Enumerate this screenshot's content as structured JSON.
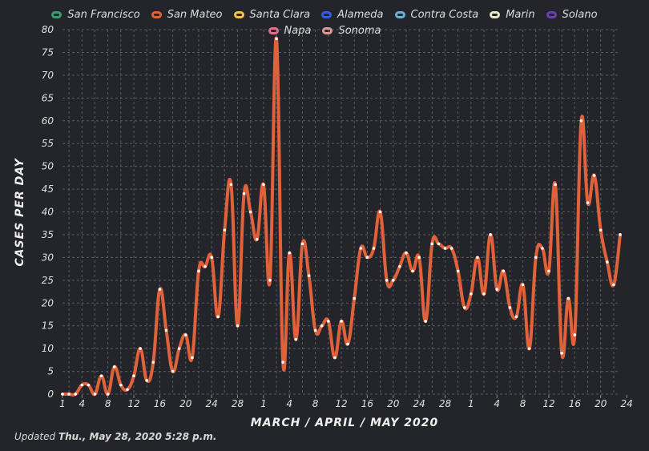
{
  "chart_data": {
    "type": "line",
    "title": "",
    "xlabel": "MARCH / APRIL / MAY 2020",
    "ylabel": "CASES PER DAY",
    "ylim": [
      0,
      80
    ],
    "yticks": [
      0,
      5,
      10,
      15,
      20,
      25,
      30,
      35,
      40,
      45,
      50,
      55,
      60,
      65,
      70,
      75,
      80
    ],
    "grid": true,
    "legend_position": "top",
    "x_tick_labels": [
      "1",
      "4",
      "8",
      "12",
      "16",
      "20",
      "24",
      "28",
      "1",
      "4",
      "8",
      "12",
      "16",
      "20",
      "24",
      "28",
      "1",
      "4",
      "8",
      "12",
      "16",
      "20",
      "24"
    ],
    "legend": [
      {
        "name": "San Francisco",
        "color": "#3f9b6f"
      },
      {
        "name": "San Mateo",
        "color": "#e0623a"
      },
      {
        "name": "Santa Clara",
        "color": "#f2c14e"
      },
      {
        "name": "Alameda",
        "color": "#2f5fe0"
      },
      {
        "name": "Contra Costa",
        "color": "#6aaed6"
      },
      {
        "name": "Marin",
        "color": "#e8e8c8"
      },
      {
        "name": "Solano",
        "color": "#6b3fb0"
      },
      {
        "name": "Napa",
        "color": "#e0708a"
      },
      {
        "name": "Sonoma",
        "color": "#d99a9a"
      }
    ],
    "series": [
      {
        "name": "San Mateo",
        "color": "#e0623a",
        "values": [
          0,
          0,
          0,
          2,
          2,
          0,
          4,
          0,
          6,
          2,
          1,
          4,
          10,
          3,
          7,
          23,
          14,
          5,
          10,
          13,
          8,
          27,
          28,
          30,
          17,
          36,
          46,
          15,
          44,
          40,
          34,
          46,
          25,
          78,
          7,
          31,
          12,
          33,
          26,
          14,
          15,
          16,
          8,
          16,
          11,
          21,
          32,
          30,
          32,
          40,
          25,
          25,
          28,
          31,
          27,
          30,
          16,
          33,
          33,
          32,
          32,
          27,
          19,
          22,
          30,
          22,
          35,
          23,
          27,
          19,
          17,
          24,
          10,
          30,
          32,
          27,
          46,
          9,
          21,
          13,
          60,
          42,
          48,
          36,
          29,
          24,
          35
        ]
      }
    ]
  },
  "footer": {
    "prefix": "Updated ",
    "date": "Thu., May 28, 2020 5:28 p.m."
  }
}
